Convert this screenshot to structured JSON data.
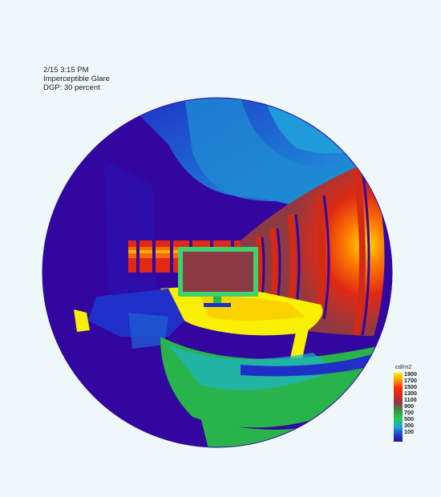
{
  "annotation": {
    "timestamp": "2/15 3:15 PM",
    "glare_class": "Imperceptible Glare",
    "dgp": "DGP: 30 percent"
  },
  "legend": {
    "unit": "cd/m2",
    "ticks": [
      "1900",
      "1700",
      "1500",
      "1300",
      "1100",
      "900",
      "700",
      "500",
      "300",
      "100"
    ],
    "colors": [
      "#ffe800",
      "#ff9a00",
      "#ff2a00",
      "#d42a22",
      "#8c3a45",
      "#2e9a40",
      "#26c850",
      "#22a8d8",
      "#1e46c8",
      "#2a0aa0"
    ]
  },
  "scene_colors": {
    "deep_blue": "#3406a0",
    "blue": "#1e30c8",
    "mid_blue": "#1e5ad2",
    "cyan_blue": "#1e96d2",
    "light_blue": "#22b4e0",
    "green": "#28b44a",
    "light_green": "#3ed26e",
    "yellow": "#f8f000",
    "orange": "#ff7800",
    "red": "#e02a14",
    "maroon": "#8c3a44",
    "dark_red": "#b0302c"
  }
}
